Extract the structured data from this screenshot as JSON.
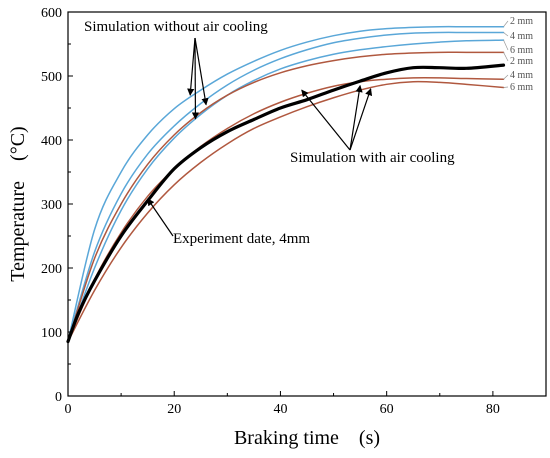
{
  "chart_data": {
    "type": "line",
    "title": "",
    "xlabel": "Braking time　(s)",
    "ylabel": "Temperature　(°C)",
    "xlim": [
      0,
      90
    ],
    "ylim": [
      0,
      600
    ],
    "xticks": [
      0,
      20,
      40,
      60,
      80
    ],
    "yticks": [
      0,
      100,
      200,
      300,
      400,
      500,
      600
    ],
    "grid": false,
    "colors": {
      "no_cooling": "#5aa7d8",
      "with_cooling": "#b0583f",
      "experiment": "#000000"
    },
    "series": [
      {
        "name": "2 mm",
        "group": "no_cooling",
        "end_label": "2 mm",
        "x": [
          0,
          5,
          10,
          15,
          20,
          25,
          30,
          35,
          40,
          45,
          50,
          55,
          60,
          65,
          70,
          75,
          82
        ],
        "y": [
          85,
          260,
          350,
          408,
          449,
          478,
          503,
          523,
          540,
          553,
          563,
          570,
          574,
          576,
          577,
          577,
          577
        ]
      },
      {
        "name": "4 mm",
        "group": "no_cooling",
        "end_label": "4 mm",
        "x": [
          0,
          5,
          10,
          15,
          20,
          25,
          30,
          35,
          40,
          45,
          50,
          55,
          60,
          65,
          70,
          75,
          82
        ],
        "y": [
          85,
          225,
          316,
          378,
          422,
          457,
          486,
          509,
          527,
          541,
          552,
          559,
          564,
          567,
          568,
          568,
          568
        ]
      },
      {
        "name": "6 mm",
        "group": "no_cooling",
        "end_label": "6 mm",
        "x": [
          0,
          5,
          10,
          15,
          20,
          25,
          30,
          35,
          40,
          45,
          50,
          55,
          60,
          65,
          70,
          75,
          82
        ],
        "y": [
          85,
          200,
          290,
          355,
          403,
          440,
          470,
          493,
          511,
          524,
          534,
          541,
          546,
          550,
          553,
          555,
          556
        ]
      },
      {
        "name": "2 mm",
        "group": "with_cooling",
        "end_label": "2 mm",
        "x": [
          0,
          5,
          10,
          15,
          20,
          25,
          30,
          35,
          40,
          45,
          50,
          55,
          60,
          65,
          70,
          75,
          82
        ],
        "y": [
          85,
          215,
          300,
          362,
          408,
          443,
          470,
          490,
          505,
          516,
          524,
          530,
          534,
          536,
          537,
          537,
          537
        ]
      },
      {
        "name": "4 mm",
        "group": "with_cooling",
        "end_label": "4 mm",
        "x": [
          0,
          5,
          10,
          15,
          20,
          25,
          30,
          35,
          40,
          45,
          50,
          55,
          60,
          65,
          70,
          75,
          82
        ],
        "y": [
          85,
          182,
          255,
          312,
          355,
          390,
          418,
          441,
          459,
          473,
          484,
          491,
          495,
          497,
          497,
          496,
          495
        ]
      },
      {
        "name": "6 mm",
        "group": "with_cooling",
        "end_label": "6 mm",
        "x": [
          0,
          5,
          10,
          15,
          20,
          25,
          30,
          35,
          40,
          45,
          50,
          55,
          60,
          65,
          70,
          75,
          82
        ],
        "y": [
          85,
          165,
          232,
          286,
          330,
          365,
          394,
          418,
          436,
          452,
          466,
          478,
          487,
          491,
          490,
          487,
          482
        ]
      },
      {
        "name": "Experiment date, 4mm",
        "group": "experiment",
        "end_label": "",
        "x": [
          0,
          2,
          5,
          10,
          15,
          20,
          25,
          30,
          35,
          40,
          45,
          50,
          55,
          60,
          65,
          70,
          75,
          82
        ],
        "y": [
          85,
          130,
          180,
          250,
          305,
          355,
          388,
          413,
          432,
          450,
          463,
          478,
          492,
          505,
          513,
          513,
          512,
          517
        ]
      }
    ],
    "annotations": [
      {
        "text": "Simulation without air cooling",
        "arrows_to": [
          [
            23,
            470
          ],
          [
            26,
            455
          ],
          [
            24,
            433
          ]
        ]
      },
      {
        "text": "Simulation with air cooling",
        "arrows_to": [
          [
            44,
            478
          ],
          [
            55,
            485
          ],
          [
            57,
            480
          ]
        ]
      },
      {
        "text": "Experiment date, 4mm",
        "arrows_to": [
          [
            15,
            308
          ]
        ]
      }
    ]
  }
}
